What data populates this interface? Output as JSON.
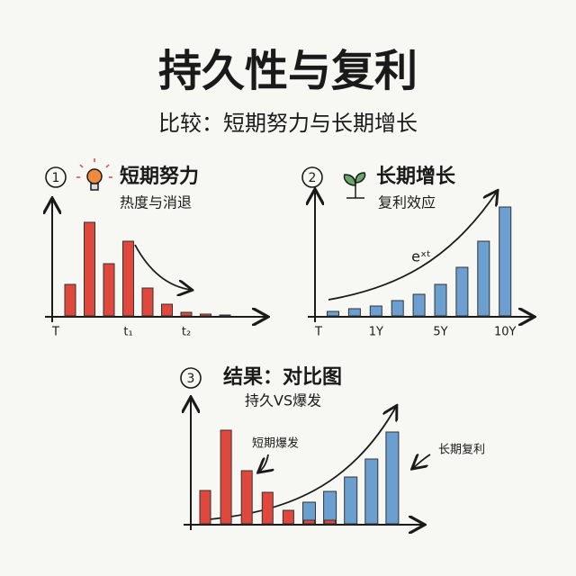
{
  "title": "持久性与复利",
  "subtitle": "比较：短期努力与长期增长",
  "chart_data": [
    {
      "type": "bar",
      "number": "1",
      "title": "短期努力",
      "subtitle": "热度与消退",
      "origin_label": "T",
      "categories": [
        null,
        null,
        null,
        "t₁",
        null,
        null,
        "t₂",
        null,
        null
      ],
      "series": [
        {
          "color": "#e0483e",
          "values": [
            36,
            105,
            59,
            84,
            32,
            14,
            5,
            3,
            2
          ]
        }
      ],
      "ylim": [
        0,
        120
      ]
    },
    {
      "type": "bar",
      "number": "2",
      "title": "长期增长",
      "subtitle": "复利效应",
      "origin_label": "T",
      "annotation": "eˣᵗ",
      "categories": [
        null,
        null,
        "1Y",
        null,
        null,
        "5Y",
        null,
        null,
        "10Y"
      ],
      "series": [
        {
          "color": "#6a9fd0",
          "values": [
            6,
            9,
            12,
            18,
            25,
            36,
            55,
            84,
            122
          ]
        }
      ],
      "ylim": [
        0,
        130
      ]
    },
    {
      "type": "bar",
      "number": "3",
      "title": "结果：对比图",
      "subtitle": "持久VS爆发",
      "categories": [
        null,
        null,
        null,
        null,
        null,
        null,
        null,
        null,
        null,
        null
      ],
      "series": [
        {
          "name": "长期复利",
          "color": "#6a9fd0",
          "values": [
            null,
            null,
            null,
            null,
            null,
            25,
            37,
            53,
            73,
            103
          ]
        },
        {
          "name": "短期爆发",
          "color": "#e0483e",
          "values": [
            38,
            105,
            60,
            36,
            16,
            5,
            5,
            null,
            null,
            null
          ]
        }
      ],
      "ylim": [
        0,
        130
      ]
    }
  ]
}
